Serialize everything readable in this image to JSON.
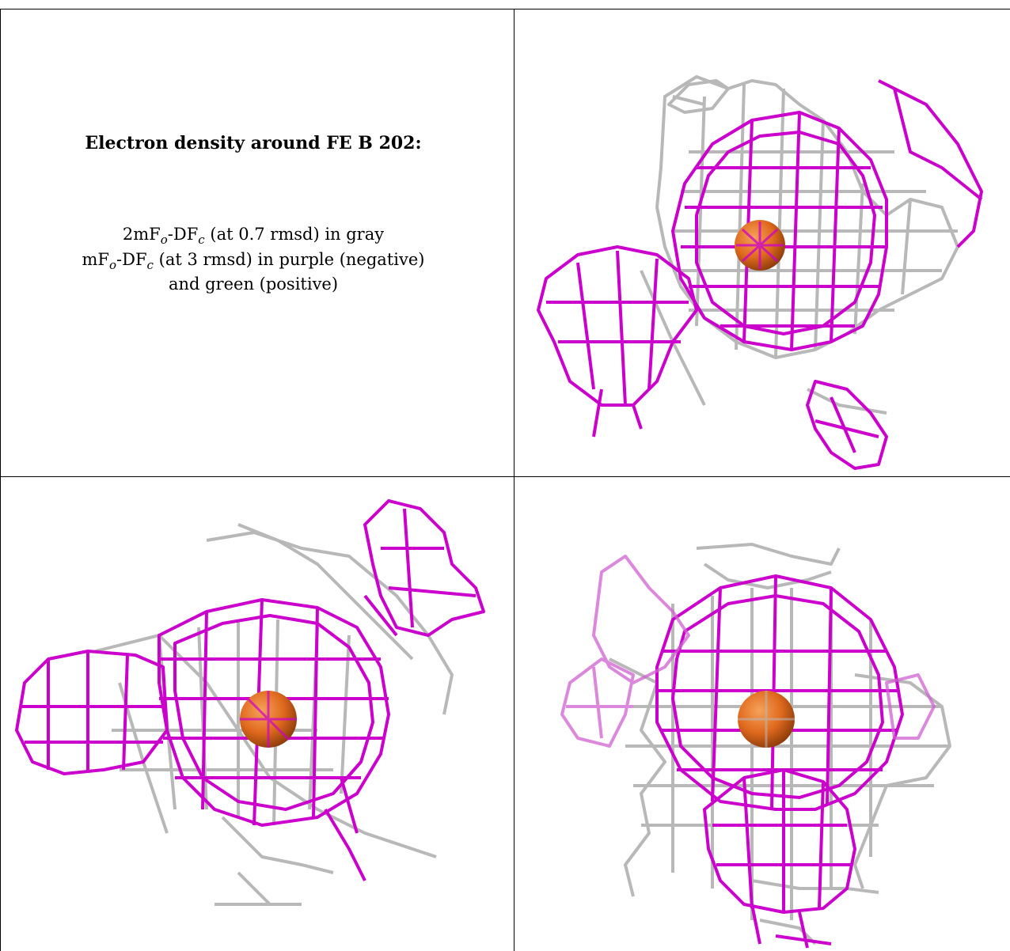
{
  "legend": {
    "title": "Electron density around FE B 202:",
    "line1": {
      "pre": "2mF",
      "sub1": "o",
      "mid": "-DF",
      "sub2": "c",
      "post": " (at 0.7 rmsd) in gray"
    },
    "line2": {
      "pre": "mF",
      "sub1": "o",
      "mid": "-DF",
      "sub2": "c",
      "post": " (at 3 rmsd) in purple (negative)"
    },
    "line3": "and green (positive)"
  },
  "colors": {
    "negative_mesh": "#cc00cc",
    "gray_mesh": "#b8b8b8",
    "iron_atom": "#e06a1e"
  },
  "views": [
    {
      "name": "view-top-right",
      "atom": "FE"
    },
    {
      "name": "view-bottom-left",
      "atom": "FE"
    },
    {
      "name": "view-bottom-right",
      "atom": "FE"
    }
  ]
}
